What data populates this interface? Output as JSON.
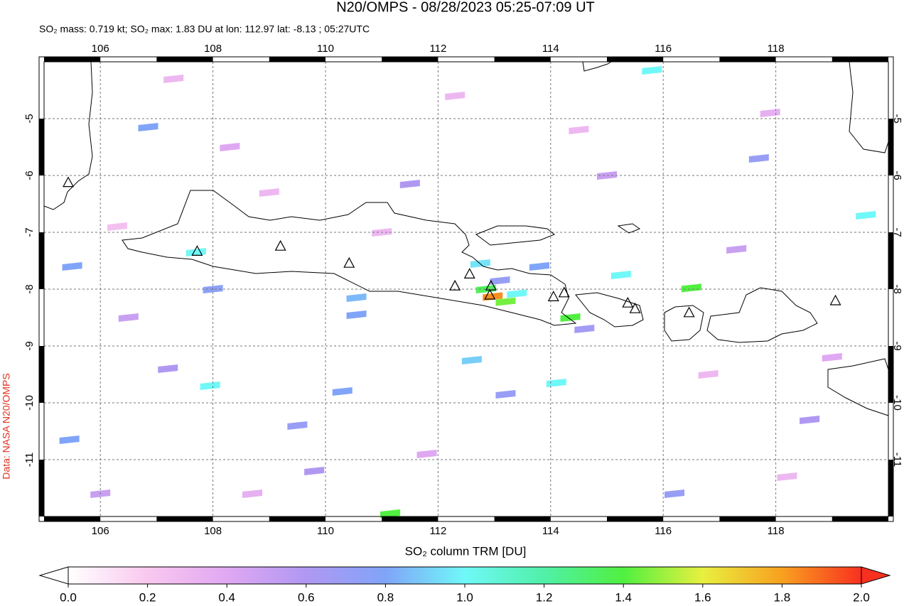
{
  "chart_data": {
    "type": "map",
    "title": "N20/OMPS - 08/28/2023 05:25-07:09 UT",
    "subtitle": "SO₂ mass: 0.719 kt; SO₂ max: 1.83 DU at lon: 112.97 lat: -8.13 ; 05:27UTC",
    "credit": "Data: NASA N20/OMPS",
    "xlim": [
      105,
      120
    ],
    "ylim": [
      -12,
      -4
    ],
    "xticks": [
      106,
      108,
      110,
      112,
      114,
      116,
      118
    ],
    "yticks": [
      -5,
      -6,
      -7,
      -8,
      -9,
      -10,
      -11
    ],
    "grid": true,
    "volcanoes": [
      [
        105.43,
        -6.12
      ],
      [
        107.72,
        -7.33
      ],
      [
        109.2,
        -7.24
      ],
      [
        110.42,
        -7.54
      ],
      [
        112.3,
        -7.94
      ],
      [
        112.56,
        -7.73
      ],
      [
        112.94,
        -7.94
      ],
      [
        112.92,
        -8.1
      ],
      [
        114.05,
        -8.13
      ],
      [
        114.24,
        -8.06
      ],
      [
        115.37,
        -8.24
      ],
      [
        115.5,
        -8.34
      ],
      [
        116.46,
        -8.41
      ],
      [
        119.06,
        -8.2
      ]
    ],
    "pixels": [
      [
        112.97,
        -8.13,
        1.83
      ],
      [
        113.2,
        -8.22,
        1.45
      ],
      [
        112.85,
        -8.0,
        1.35
      ],
      [
        114.35,
        -8.5,
        1.4
      ],
      [
        116.5,
        -7.98,
        1.4
      ],
      [
        111.15,
        -11.95,
        1.4
      ],
      [
        113.4,
        -8.08,
        1.0
      ],
      [
        112.75,
        -7.55,
        0.95
      ],
      [
        107.95,
        -9.7,
        1.0
      ],
      [
        107.7,
        -7.35,
        1.0
      ],
      [
        115.25,
        -7.75,
        1.0
      ],
      [
        115.8,
        -4.15,
        1.0
      ],
      [
        119.6,
        -6.7,
        1.0
      ],
      [
        114.1,
        -9.65,
        1.0
      ],
      [
        112.6,
        -9.25,
        0.9
      ],
      [
        110.55,
        -8.15,
        0.85
      ],
      [
        110.55,
        -8.45,
        0.8
      ],
      [
        105.5,
        -7.6,
        0.8
      ],
      [
        105.45,
        -10.65,
        0.8
      ],
      [
        106.85,
        -5.15,
        0.8
      ],
      [
        108.0,
        -8.0,
        0.75
      ],
      [
        109.5,
        -10.4,
        0.7
      ],
      [
        110.3,
        -9.8,
        0.8
      ],
      [
        113.2,
        -9.85,
        0.7
      ],
      [
        111.5,
        -6.15,
        0.6
      ],
      [
        113.1,
        -7.85,
        0.7
      ],
      [
        114.6,
        -8.7,
        0.65
      ],
      [
        107.2,
        -9.4,
        0.6
      ],
      [
        113.8,
        -7.6,
        0.8
      ],
      [
        117.7,
        -5.7,
        0.7
      ],
      [
        118.6,
        -10.3,
        0.6
      ],
      [
        106.5,
        -8.5,
        0.5
      ],
      [
        109.8,
        -11.2,
        0.6
      ],
      [
        116.2,
        -11.6,
        0.7
      ],
      [
        108.3,
        -5.5,
        0.4
      ],
      [
        111.8,
        -10.9,
        0.4
      ],
      [
        119.0,
        -9.2,
        0.4
      ],
      [
        115.0,
        -6.0,
        0.5
      ],
      [
        117.3,
        -7.3,
        0.5
      ],
      [
        106.0,
        -11.6,
        0.5
      ],
      [
        107.3,
        -4.3,
        0.3
      ],
      [
        109.0,
        -6.3,
        0.3
      ],
      [
        111.0,
        -7.0,
        0.3
      ],
      [
        114.5,
        -5.2,
        0.3
      ],
      [
        116.8,
        -9.5,
        0.3
      ],
      [
        118.2,
        -11.3,
        0.3
      ],
      [
        106.3,
        -6.9,
        0.25
      ],
      [
        108.7,
        -11.6,
        0.35
      ],
      [
        112.3,
        -4.6,
        0.3
      ],
      [
        117.9,
        -4.9,
        0.35
      ]
    ],
    "colorbar": {
      "label": "SO₂ column TRM [DU]",
      "range": [
        0,
        2
      ],
      "colors": [
        "#ffffff",
        "#f9c8ef",
        "#e0a8f2",
        "#b098f2",
        "#80a4f8",
        "#70f8f8",
        "#50f0a8",
        "#50f040",
        "#e8f040",
        "#f8a020",
        "#f83020"
      ],
      "ticks": [
        {
          "value": 0,
          "label": "0.0"
        },
        {
          "value": 0.2,
          "label": "0.2"
        },
        {
          "value": 0.4,
          "label": "0.4"
        },
        {
          "value": 0.6,
          "label": "0.6"
        },
        {
          "value": 0.8,
          "label": "0.8"
        },
        {
          "value": 1,
          "label": "1.0"
        },
        {
          "value": 1.2,
          "label": "1.2"
        },
        {
          "value": 1.4,
          "label": "1.4"
        },
        {
          "value": 1.6,
          "label": "1.6"
        },
        {
          "value": 1.8,
          "label": "1.8"
        },
        {
          "value": 2,
          "label": "2.0"
        }
      ]
    }
  }
}
